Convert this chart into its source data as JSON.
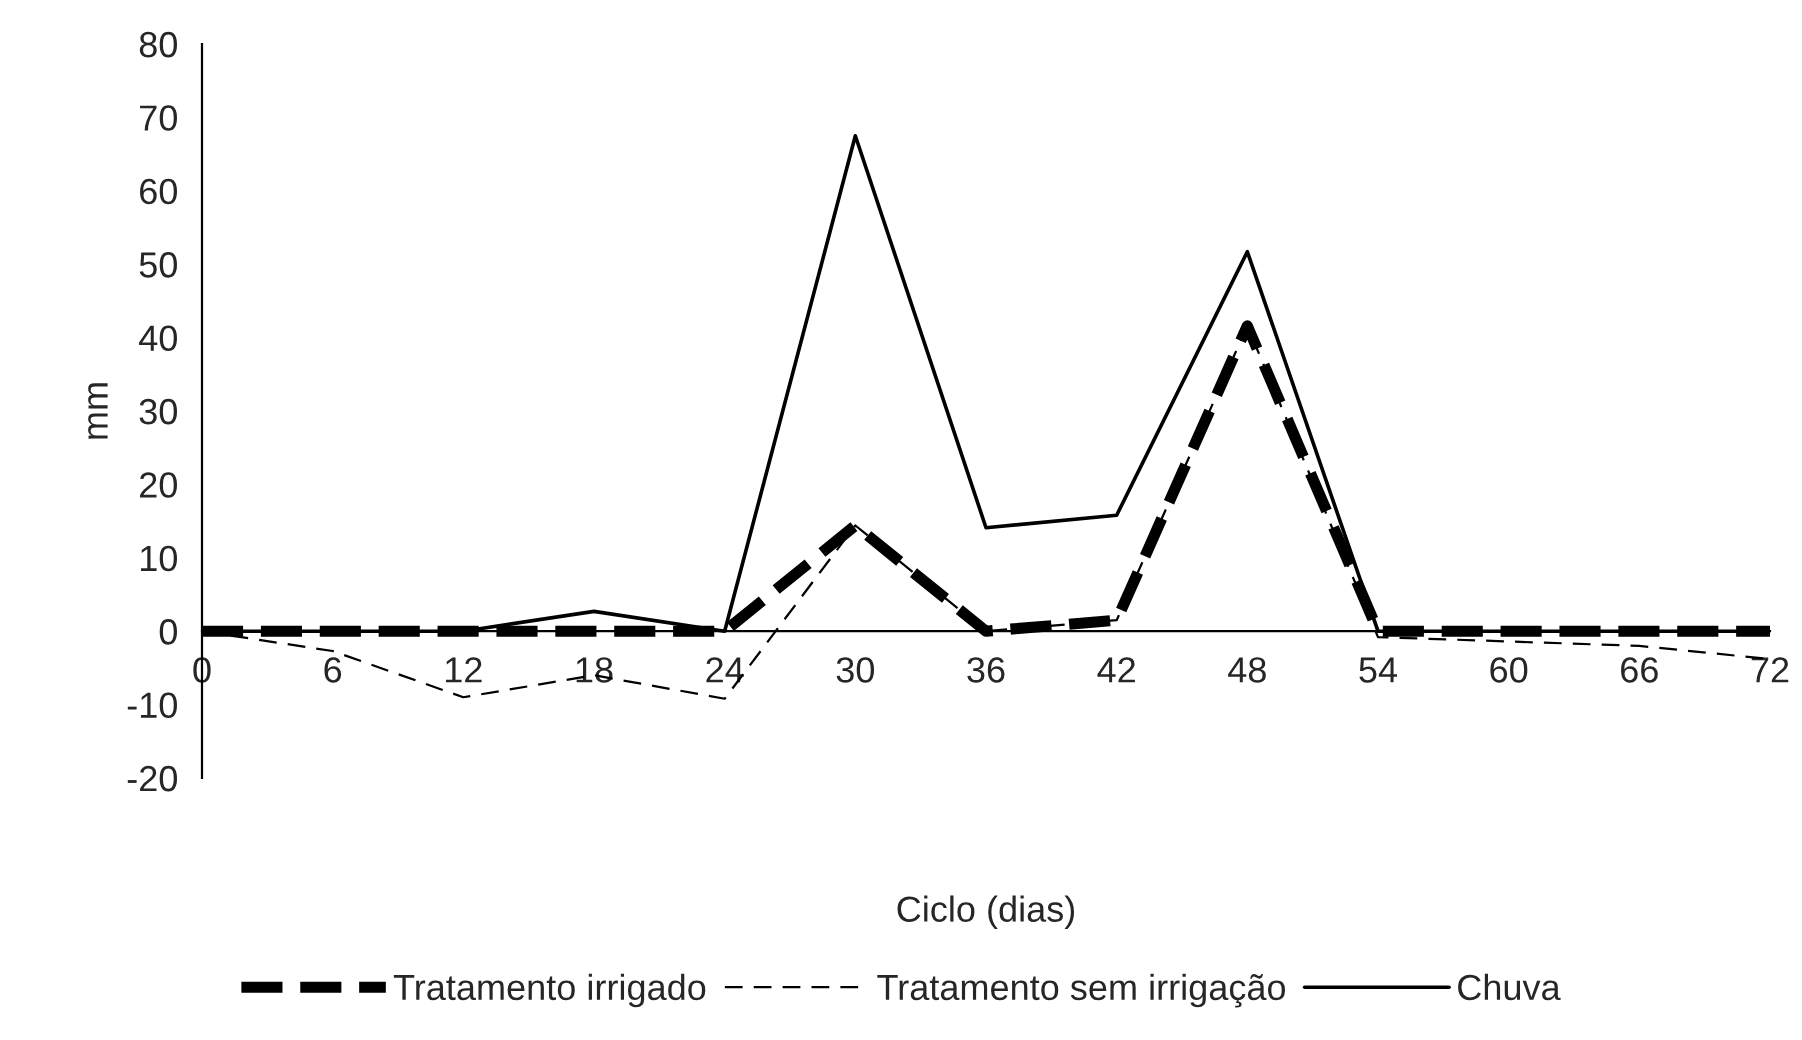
{
  "chart_data": {
    "type": "line",
    "xlabel": "Ciclo (dias)",
    "ylabel": "mm",
    "x": [
      0,
      6,
      12,
      18,
      24,
      30,
      36,
      42,
      48,
      54,
      60,
      66,
      72
    ],
    "xlim": [
      0,
      72
    ],
    "xticks": [
      0,
      6,
      12,
      18,
      24,
      30,
      36,
      42,
      48,
      54,
      60,
      66,
      72
    ],
    "ylim": [
      -20,
      80
    ],
    "yticks": [
      -20,
      -10,
      0,
      10,
      20,
      30,
      40,
      50,
      60,
      70,
      80
    ],
    "grid": false,
    "legend": "bottom",
    "marker": "none",
    "series": [
      {
        "name": "Tratamento irrigado",
        "color": "#000000",
        "line_style": "dashed",
        "values": [
          0,
          0,
          0,
          0,
          0,
          14.4,
          0,
          1.5,
          41.6,
          0,
          0,
          0,
          0
        ]
      },
      {
        "name": "Tratamento sem irrigação",
        "color": "#000000",
        "line_style": "dashed",
        "values": [
          0,
          -2.7,
          -9,
          -6,
          -9.2,
          14.4,
          0,
          1.5,
          41.6,
          -0.8,
          -1.4,
          -2,
          -3.8
        ]
      },
      {
        "name": "Chuva",
        "color": "#000000",
        "line_style": "solid",
        "values": [
          0,
          0,
          0,
          2.7,
          0,
          67.5,
          14.1,
          15.8,
          51.7,
          0,
          0,
          0,
          0
        ]
      }
    ]
  }
}
